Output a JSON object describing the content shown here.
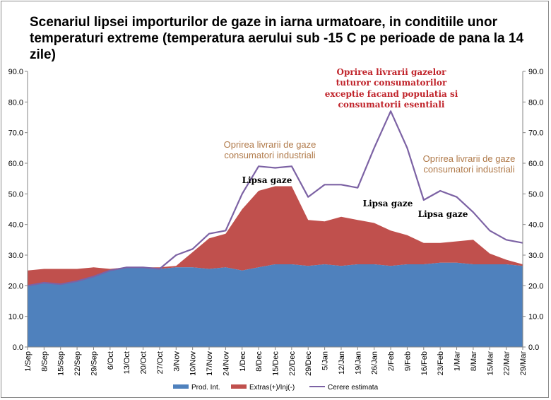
{
  "title": "Scenariul lipsei importurilor de gaze in iarna urmatoare, in conditiile unor temperaturi extreme (temperatura aerului sub -15 C pe perioade de pana la 14 zile)",
  "chart_data": {
    "type": "area",
    "title": "Scenariul lipsei importurilor de gaze in iarna urmatoare, in conditiile unor temperaturi extreme (temperatura aerului sub -15 C pe perioade de pana la 14 zile)",
    "ylim": [
      0,
      90
    ],
    "yticks": [
      "0.0",
      "10.0",
      "20.0",
      "30.0",
      "40.0",
      "50.0",
      "60.0",
      "70.0",
      "80.0",
      "90.0"
    ],
    "x_labels": [
      "1/Sep",
      "8/Sep",
      "15/Sep",
      "22/Sep",
      "29/Sep",
      "6/Oct",
      "13/Oct",
      "20/Oct",
      "27/Oct",
      "3/Nov",
      "10/Nov",
      "17/Nov",
      "24/Nov",
      "1/Dec",
      "8/Dec",
      "15/Dec",
      "22/Dec",
      "29/Dec",
      "5/Jan",
      "12/Jan",
      "19/Jan",
      "26/Jan",
      "2/Feb",
      "9/Feb",
      "16/Feb",
      "23/Feb",
      "1/Mar",
      "8/Mar",
      "15/Mar",
      "22/Mar",
      "29/Mar"
    ],
    "series": [
      {
        "name": "Prod. Int.",
        "color": "#4f81bd",
        "values": [
          20,
          21,
          20.5,
          21.5,
          23,
          25,
          26,
          26,
          25.5,
          26,
          26,
          25.5,
          26,
          25,
          26,
          27,
          27,
          26.5,
          27,
          26.5,
          27,
          27,
          26.5,
          27,
          27,
          27.5,
          27.5,
          27,
          27,
          27,
          26.5
        ]
      },
      {
        "name": "Extras(+)/Inj(-)",
        "color": "#c0504d",
        "values": [
          5,
          4.5,
          5,
          4,
          3,
          0.5,
          0,
          0,
          0.5,
          0.5,
          5,
          10,
          11,
          20,
          25,
          25.5,
          25.5,
          15,
          14,
          16,
          14.5,
          13.5,
          11.5,
          9.5,
          7,
          6.5,
          7,
          8,
          3.5,
          1.5,
          0.5
        ]
      },
      {
        "name": "Cerere estimata",
        "color": "#7c62a4",
        "values": [
          20,
          21,
          20.5,
          21.5,
          23,
          25,
          26,
          26,
          25.5,
          30,
          32,
          37,
          38,
          50,
          59,
          58.5,
          59,
          49,
          53,
          53,
          52,
          65,
          77,
          65,
          48,
          51,
          49,
          44,
          38,
          35,
          34
        ]
      }
    ],
    "annotations": [
      "Oprirea livrarii de gaze consumatori industriali",
      "Oprirea livrarii gazelor tuturor consumatorilor exceptie facand populatia si consumatorii esentiali",
      "Oprirea livrarii de gaze consumatori industriali",
      "Lipsa gaze",
      "Lipsa gaze",
      "Lipsa gaze"
    ],
    "legend_position": "bottom",
    "grid": false
  }
}
